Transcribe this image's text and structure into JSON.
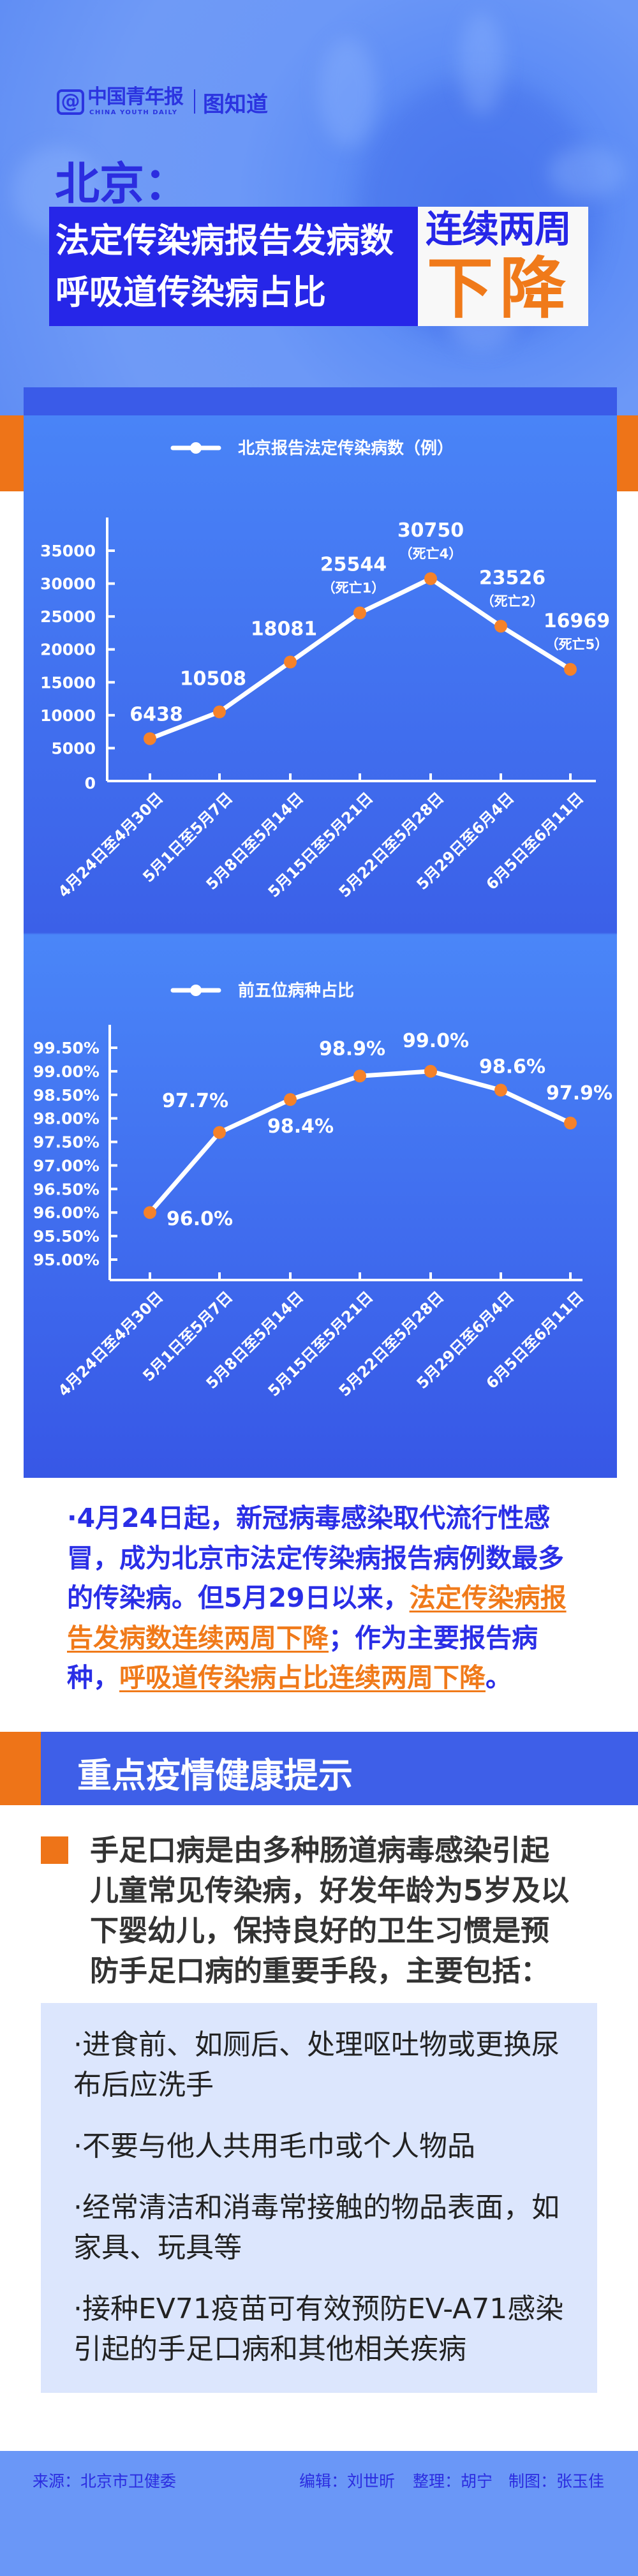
{
  "brand": {
    "at": "@",
    "name_cn": "中国青年报",
    "name_en": "CHINA YOUTH DAILY",
    "column": "图知道"
  },
  "header": {
    "city": "北京：",
    "title_lines": [
      "法定传染病报告发病数",
      "呼吸道传染病占比"
    ],
    "badge_top": "连续两周",
    "badge_bottom": "下降"
  },
  "colors": {
    "blue": "#2626e8",
    "orange": "#f07a1a",
    "panel": "#4a86f8",
    "dot": "#f5822a"
  },
  "chart_data": [
    {
      "type": "line",
      "legend": "北京报告法定传染病数（例）",
      "legend_icon": "line-with-dot",
      "categories": [
        "4月24日至4月30日",
        "5月1日至5月7日",
        "5月8日至5月14日",
        "5月15日至5月21日",
        "5月22日至5月28日",
        "5月29日至6月4日",
        "6月5日至6月11日"
      ],
      "values": [
        6438,
        10508,
        18081,
        25544,
        30750,
        23526,
        16969
      ],
      "notes": [
        "",
        "",
        "",
        "（死亡1）",
        "（死亡4）",
        "（死亡2）",
        "（死亡5）"
      ],
      "yticks": [
        "0",
        "5000",
        "10000",
        "15000",
        "20000",
        "25000",
        "30000",
        "35000"
      ],
      "ylim": [
        0,
        35000
      ]
    },
    {
      "type": "line",
      "legend": "前五位病种占比",
      "legend_icon": "line-with-dot",
      "categories": [
        "4月24日至4月30日",
        "5月1日至5月7日",
        "5月8日至5月14日",
        "5月15日至5月21日",
        "5月22日至5月28日",
        "5月29日至6月4日",
        "6月5日至6月11日"
      ],
      "values": [
        96.0,
        97.7,
        98.4,
        98.9,
        99.0,
        98.6,
        97.9
      ],
      "labels": [
        "96.0%",
        "97.7%",
        "98.4%",
        "98.9%",
        "99.0%",
        "98.6%",
        "97.9%"
      ],
      "yticks": [
        "95.00%",
        "95.50%",
        "96.00%",
        "96.50%",
        "97.00%",
        "97.50%",
        "98.00%",
        "98.50%",
        "99.00%",
        "99.50%"
      ],
      "ylim": [
        95,
        99.5
      ]
    }
  ],
  "summary": {
    "p1": "·4月24日起，新冠病毒感染取代流行性感冒，成为北京市法定传染病报告病例数最多的传染病。但5月29日以来，",
    "h1": "法定传染病报告发病数连续两周下降",
    "p2": "；作为主要报告病种，",
    "h2": "呼吸道传染病占比连续两周下降",
    "p3": "。"
  },
  "tips": {
    "section_title": "重点疫情健康提示",
    "intro": "手足口病是由多种肠道病毒感染引起儿童常见传染病，好发年龄为5岁及以下婴幼儿，保持良好的卫生习惯是预防手足口病的重要手段，主要包括：",
    "items": [
      "·进食前、如厕后、处理呕吐物或更换尿布后应洗手",
      "·不要与他人共用毛巾或个人物品",
      "·经常清洁和消毒常接触的物品表面，如家具、玩具等",
      "·接种EV71疫苗可有效预防EV-A71感染引起的手足口病和其他相关疾病"
    ]
  },
  "footer": {
    "source": "来源：北京市卫健委",
    "editor": "编辑：刘世昕",
    "arrange": "整理：胡宁",
    "design": "制图：张玉佳"
  }
}
